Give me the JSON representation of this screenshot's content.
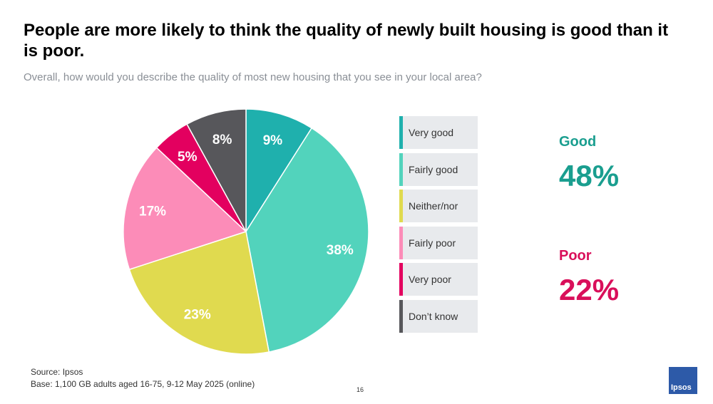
{
  "title": "People are more likely to think the quality of newly built housing is good than it is poor.",
  "subtitle": "Overall, how would you describe the quality of most new housing that you see in your local area?",
  "chart_data": {
    "type": "pie",
    "slices": [
      {
        "label": "Very good",
        "value": 9,
        "display": "9%",
        "color": "#1fb0ad",
        "text_color": "#ffffff"
      },
      {
        "label": "Fairly good",
        "value": 38,
        "display": "38%",
        "color": "#52d3bc",
        "text_color": "#ffffff"
      },
      {
        "label": "Neither/nor",
        "value": 23,
        "display": "23%",
        "color": "#e0da4f",
        "text_color": "#ffffff"
      },
      {
        "label": "Fairly poor",
        "value": 17,
        "display": "17%",
        "color": "#fc8cb8",
        "text_color": "#ffffff"
      },
      {
        "label": "Very poor",
        "value": 5,
        "display": "5%",
        "color": "#e3005f",
        "text_color": "#ffffff"
      },
      {
        "label": "Don't know",
        "value": 8,
        "display": "8%",
        "color": "#57575b",
        "text_color": "#ffffff"
      }
    ]
  },
  "legend": [
    {
      "label": "Very good",
      "color": "#1fb0ad"
    },
    {
      "label": "Fairly good",
      "color": "#52d3bc"
    },
    {
      "label": "Neither/nor",
      "color": "#e0da4f"
    },
    {
      "label": "Fairly poor",
      "color": "#fc8cb8"
    },
    {
      "label": "Very poor",
      "color": "#e3005f"
    },
    {
      "label": "Don’t know",
      "color": "#57575b"
    }
  ],
  "summary": {
    "good_label": "Good",
    "good_value": "48%",
    "good_color": "#1a9e8f",
    "poor_label": "Poor",
    "poor_value": "22%",
    "poor_color": "#d90f5a"
  },
  "footer": {
    "source": "Source: Ipsos",
    "base": "Base: 1,100 GB adults aged 16-75, 9-12 May 2025 (online)",
    "page_number": "16"
  },
  "logo": {
    "text": "Ipsos",
    "color": "#2d5aa8"
  }
}
